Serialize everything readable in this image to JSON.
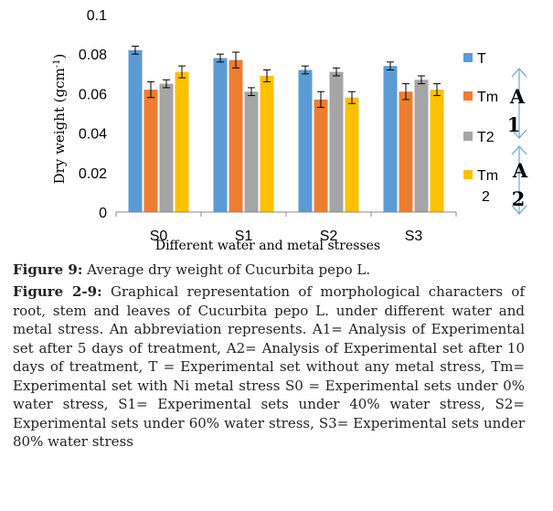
{
  "chart_data": {
    "type": "bar",
    "categories": [
      "S0",
      "S1",
      "S2",
      "S3"
    ],
    "series": [
      {
        "name": "T",
        "color": "#5b9bd5",
        "values": [
          0.082,
          0.078,
          0.072,
          0.074
        ],
        "errors": [
          0.002,
          0.002,
          0.002,
          0.002
        ]
      },
      {
        "name": "Tm",
        "color": "#ed7d31",
        "values": [
          0.062,
          0.077,
          0.057,
          0.061
        ],
        "errors": [
          0.004,
          0.004,
          0.004,
          0.004
        ]
      },
      {
        "name": "T2",
        "color": "#a5a5a5",
        "values": [
          0.065,
          0.061,
          0.071,
          0.067
        ],
        "errors": [
          0.002,
          0.002,
          0.002,
          0.002
        ]
      },
      {
        "name": "Tm\n2",
        "color": "#ffc000",
        "values": [
          0.071,
          0.069,
          0.058,
          0.062
        ],
        "errors": [
          0.003,
          0.003,
          0.003,
          0.003
        ]
      }
    ],
    "ylim": [
      0,
      0.1
    ],
    "yticks": [
      0,
      0.02,
      0.04,
      0.06,
      0.08,
      0.1
    ],
    "ytick_labels": [
      "0",
      "0.02",
      "0.04",
      "0.06",
      "0.08",
      "0.1"
    ],
    "ylabel": "Dry weight (gcm",
    "ylabel_sup": "-1",
    "ylabel_end": ")",
    "xlabel": "Different water and metal stresses",
    "legend_position": "right",
    "annotations": [
      "A",
      "1",
      "A",
      "2"
    ]
  },
  "caption": {
    "figure_label": "Figure 9:",
    "figure_text": " Average dry weight of Cucurbita pepo L.",
    "desc_label": "Figure 2-9:",
    "desc_text": " Graphical representation of morphological characters of root, stem and leaves of Cucurbita pepo L. under different water and metal stress. An abbreviation represents. A1= Analysis of Experimental set after 5 days of treatment, A2= Analysis of Experimental set after 10 days of treatment, T = Experimental set without any metal stress, Tm= Experimental set with Ni metal stress S0 = Experimental sets under 0% water stress, S1= Experimental sets under 40% water stress, S2= Experimental sets under 60% water stress, S3= Experimental sets under 80% water stress"
  }
}
